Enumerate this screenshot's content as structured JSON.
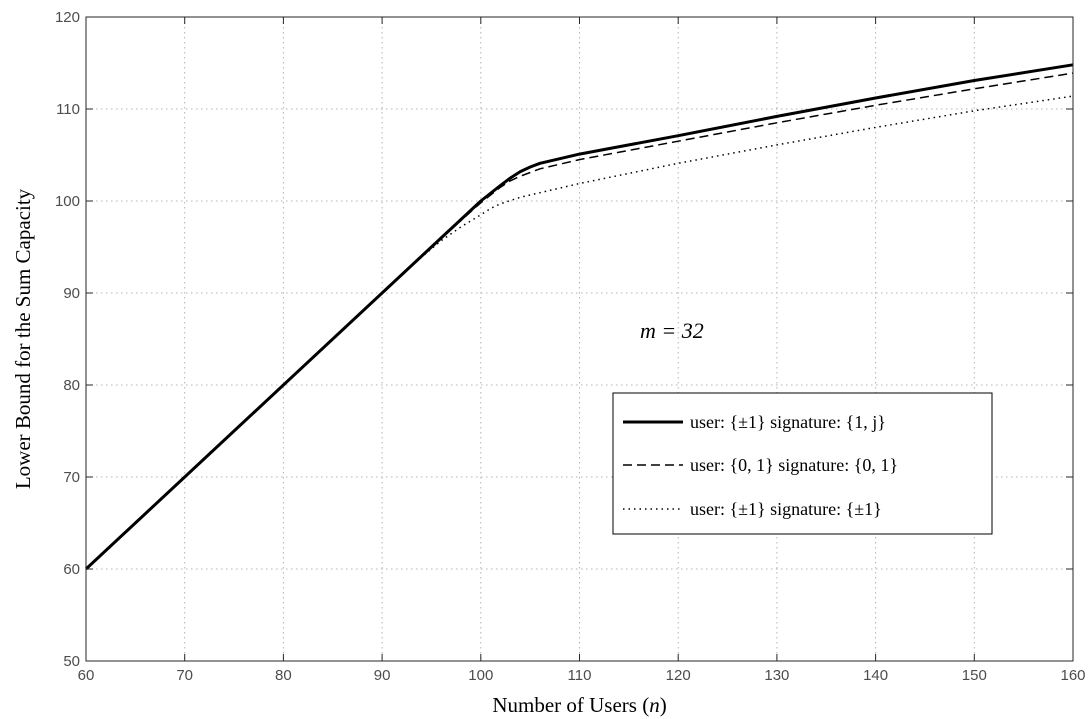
{
  "chart_data": {
    "type": "line",
    "xlabel": "Number of Users (n)",
    "ylabel": "Lower Bound for the Sum Capacity",
    "xlim": [
      60,
      160
    ],
    "ylim": [
      50,
      120
    ],
    "xticks": [
      60,
      70,
      80,
      90,
      100,
      110,
      120,
      130,
      140,
      150,
      160
    ],
    "yticks": [
      50,
      60,
      70,
      80,
      90,
      100,
      110,
      120
    ],
    "grid": true,
    "legend_position": "lower-right",
    "annotation": "m = 32",
    "series": [
      {
        "name": "user: {±1} signature: {1, j}",
        "style": "solid-thick",
        "x": [
          60,
          70,
          80,
          90,
          95,
          98,
          100,
          102,
          103,
          104,
          105,
          106,
          108,
          110,
          115,
          120,
          130,
          140,
          150,
          160
        ],
        "y": [
          60,
          70,
          80,
          90,
          95,
          98,
          100,
          101.7,
          102.5,
          103.2,
          103.7,
          104.1,
          104.6,
          105.1,
          106.1,
          107.1,
          109.2,
          111.2,
          113.1,
          114.8
        ]
      },
      {
        "name": "user: {0, 1} signature: {0, 1}",
        "style": "dashed",
        "x": [
          60,
          70,
          80,
          90,
          95,
          98,
          100,
          102,
          103,
          104,
          105,
          106,
          108,
          110,
          115,
          120,
          130,
          140,
          150,
          160
        ],
        "y": [
          60,
          70,
          80,
          90,
          95,
          97.9,
          99.8,
          101.5,
          102.2,
          102.7,
          103.1,
          103.5,
          104.0,
          104.5,
          105.5,
          106.5,
          108.5,
          110.4,
          112.2,
          113.9
        ]
      },
      {
        "name": "user: {±1} signature: {±1}",
        "style": "dotted",
        "x": [
          60,
          70,
          80,
          90,
          94,
          96,
          98,
          100,
          101,
          102,
          104,
          106,
          110,
          115,
          120,
          130,
          140,
          150,
          160
        ],
        "y": [
          60,
          70,
          80,
          90,
          93.9,
          95.7,
          97.2,
          98.5,
          99.2,
          99.7,
          100.4,
          100.9,
          101.9,
          103.0,
          104.1,
          106.1,
          108.0,
          109.8,
          111.4
        ]
      }
    ]
  }
}
